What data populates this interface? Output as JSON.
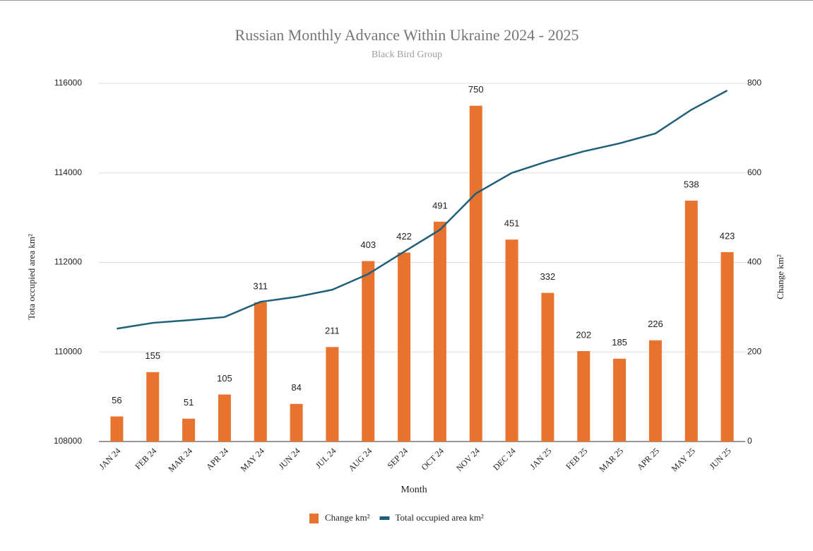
{
  "chart_data": {
    "type": "bar+line",
    "title": "Russian Monthly Advance Within Ukraine 2024 - 2025",
    "subtitle": "Black Bird Group",
    "xlabel": "Month",
    "ylabel": "Tota occupied area km²",
    "y2label": "Change km²",
    "categories": [
      "JAN 24",
      "FEB 24",
      "MAR 24",
      "APR 24",
      "MAY 24",
      "JUN 24",
      "JUL 24",
      "AUG 24",
      "SEP 24",
      "OCT 24",
      "NOV 24",
      "DEC 24",
      "JAN 25",
      "FEB 25",
      "MAR 25",
      "APR 25",
      "MAY 25",
      "JUN 25"
    ],
    "series": [
      {
        "name": "Change km²",
        "type": "bar",
        "axis": "y2",
        "color": "#e8732f",
        "values": [
          56,
          155,
          51,
          105,
          311,
          84,
          211,
          403,
          422,
          491,
          750,
          451,
          332,
          202,
          185,
          226,
          538,
          423
        ]
      },
      {
        "name": "Total occupied area km²",
        "type": "line",
        "axis": "y",
        "color": "#1f5f7a",
        "values": [
          110520,
          110650,
          110710,
          110780,
          111120,
          111230,
          111390,
          111740,
          112240,
          112730,
          113540,
          114000,
          114260,
          114480,
          114660,
          114880,
          115410,
          115840
        ]
      }
    ],
    "ylim": [
      108000,
      116000
    ],
    "yticks": [
      108000,
      110000,
      112000,
      114000,
      116000
    ],
    "y2lim": [
      0,
      800
    ],
    "y2ticks": [
      0,
      200,
      400,
      600,
      800
    ],
    "grid": true,
    "legend": "bottom"
  }
}
